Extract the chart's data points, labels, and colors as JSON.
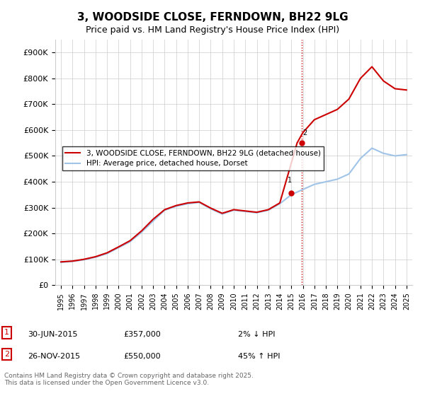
{
  "title": "3, WOODSIDE CLOSE, FERNDOWN, BH22 9LG",
  "subtitle": "Price paid vs. HM Land Registry's House Price Index (HPI)",
  "ylabel_ticks": [
    "£0",
    "£100K",
    "£200K",
    "£300K",
    "£400K",
    "£500K",
    "£600K",
    "£700K",
    "£800K",
    "£900K"
  ],
  "ytick_values": [
    0,
    100000,
    200000,
    300000,
    400000,
    500000,
    600000,
    700000,
    800000,
    900000
  ],
  "hpi_color": "#a0c4e8",
  "price_color": "#cc0000",
  "vline_color": "#cc0000",
  "vline_style": ":",
  "transaction1_date": "30-JUN-2015",
  "transaction1_price": "£357,000",
  "transaction1_pct": "2% ↓ HPI",
  "transaction2_date": "26-NOV-2015",
  "transaction2_price": "£550,000",
  "transaction2_pct": "45% ↑ HPI",
  "legend_label1": "3, WOODSIDE CLOSE, FERNDOWN, BH22 9LG (detached house)",
  "legend_label2": "HPI: Average price, detached house, Dorset",
  "footnote": "Contains HM Land Registry data © Crown copyright and database right 2025.\nThis data is licensed under the Open Government Licence v3.0.",
  "hpi_years": [
    1995,
    1996,
    1997,
    1998,
    1999,
    2000,
    2001,
    2002,
    2003,
    2004,
    2005,
    2006,
    2007,
    2008,
    2009,
    2010,
    2011,
    2012,
    2013,
    2014,
    2015,
    2016,
    2017,
    2018,
    2019,
    2020,
    2021,
    2022,
    2023,
    2024,
    2025
  ],
  "hpi_values": [
    88000,
    92000,
    98000,
    108000,
    122000,
    145000,
    168000,
    205000,
    248000,
    290000,
    305000,
    315000,
    320000,
    295000,
    275000,
    290000,
    285000,
    280000,
    290000,
    315000,
    350000,
    370000,
    390000,
    400000,
    410000,
    430000,
    490000,
    530000,
    510000,
    500000,
    505000
  ],
  "price_years": [
    1995,
    1996,
    1997,
    1998,
    1999,
    2000,
    2001,
    2002,
    2003,
    2004,
    2005,
    2006,
    2007,
    2008,
    2009,
    2010,
    2011,
    2012,
    2013,
    2014,
    2015.5,
    2016,
    2017,
    2018,
    2019,
    2020,
    2021,
    2022,
    2023,
    2024,
    2025
  ],
  "price_values": [
    90000,
    93000,
    100000,
    110000,
    125000,
    148000,
    172000,
    210000,
    255000,
    292000,
    308000,
    318000,
    322000,
    298000,
    278000,
    292000,
    287000,
    282000,
    292000,
    318000,
    550000,
    590000,
    640000,
    660000,
    680000,
    720000,
    800000,
    845000,
    790000,
    760000,
    755000
  ],
  "vline_x": 2015.9,
  "marker1_x": 2015.0,
  "marker1_y": 357000,
  "marker2_x": 2015.9,
  "marker2_y": 550000,
  "xlim": [
    1994.5,
    2025.5
  ],
  "ylim": [
    0,
    950000
  ]
}
